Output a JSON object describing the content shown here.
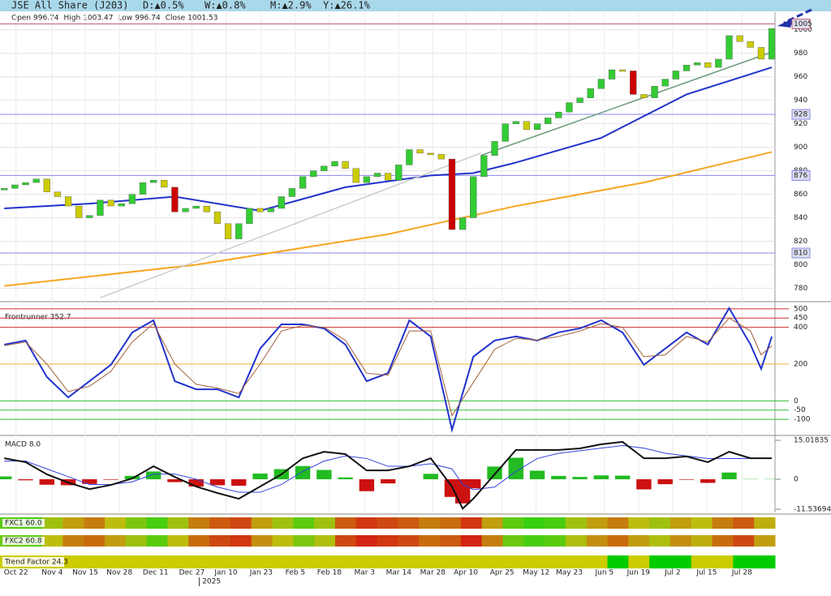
{
  "chart_data": {
    "type": "candlestick",
    "header": {
      "title": "JSE All Share (J203)",
      "changes": [
        "D:▲0.5%",
        "W:▲0.8%",
        "M:▲2.9%",
        "Y:▲26.1%"
      ]
    },
    "ohlc": [
      {
        "label": "Open",
        "value": 996.74
      },
      {
        "label": "High",
        "value": 1003.47
      },
      {
        "label": "Low",
        "value": 996.74
      },
      {
        "label": "Close",
        "value": 1001.53
      }
    ],
    "xlim": [
      -0.4,
      72.3
    ],
    "xticks": [
      {
        "value": 1.1,
        "label": "Oct 22"
      },
      {
        "value": 4.5,
        "label": "Nov 4"
      },
      {
        "value": 7.6,
        "label": "Nov 15"
      },
      {
        "value": 10.8,
        "label": "Nov 28"
      },
      {
        "value": 14.2,
        "label": "Dec 11"
      },
      {
        "value": 17.6,
        "label": "Dec 27"
      },
      {
        "value": 20.8,
        "label": "Jan 10"
      },
      {
        "value": 24.1,
        "label": "Jan 23"
      },
      {
        "value": 27.3,
        "label": "Feb 5"
      },
      {
        "value": 30.5,
        "label": "Feb 18"
      },
      {
        "value": 33.8,
        "label": "Mar 3"
      },
      {
        "value": 37,
        "label": "Mar 14"
      },
      {
        "value": 40.2,
        "label": "Mar 28"
      },
      {
        "value": 43.3,
        "label": "Apr 10"
      },
      {
        "value": 46.7,
        "label": "Apr 25"
      },
      {
        "value": 49.9,
        "label": "May 12"
      },
      {
        "value": 53,
        "label": "May 23"
      },
      {
        "value": 56.3,
        "label": "Jun 5"
      },
      {
        "value": 59.5,
        "label": "Jun 19"
      },
      {
        "value": 62.7,
        "label": "Jul 2"
      },
      {
        "value": 65.9,
        "label": "Jul 15"
      },
      {
        "value": 69.2,
        "label": "Jul 28"
      }
    ],
    "year_label": {
      "value": 18.3,
      "label": "2025"
    },
    "price": {
      "ylim": [
        770,
        1015
      ],
      "yticks": [
        780,
        800,
        820,
        840,
        860,
        880,
        900,
        920,
        940,
        960,
        980,
        1000
      ],
      "grid": true,
      "up_color": "#33cc33",
      "down_color": "#cccc00",
      "drop_color": "#cc0000",
      "closes": [
        865,
        868,
        870,
        873,
        862,
        858,
        850,
        840,
        842,
        855,
        850,
        852,
        860,
        870,
        872,
        866,
        845,
        848,
        850,
        845,
        835,
        822,
        835,
        848,
        845,
        848,
        858,
        865,
        875,
        880,
        884,
        888,
        882,
        870,
        875,
        878,
        872,
        885,
        898,
        895,
        894,
        890,
        830,
        840,
        875,
        893,
        905,
        920,
        922,
        915,
        920,
        925,
        930,
        938,
        942,
        950,
        958,
        966,
        965,
        945,
        942,
        952,
        958,
        965,
        970,
        972,
        968,
        975,
        995,
        990,
        985,
        975,
        1001
      ],
      "lines": [
        {
          "name": "MA50",
          "color": "#2233cc",
          "x": [
            0,
            8,
            16,
            24,
            32,
            40,
            44,
            48,
            56,
            64,
            72
          ],
          "values": [
            848,
            852,
            858,
            846,
            866,
            876,
            878,
            887,
            908,
            945,
            968
          ]
        },
        {
          "name": "MA200",
          "color": "#f5a623",
          "x": [
            0,
            18,
            36,
            48,
            60,
            72
          ],
          "values": [
            782,
            800,
            826,
            850,
            870,
            896
          ]
        },
        {
          "name": "Trend 1",
          "color": "#cccccc",
          "x": [
            9,
            44.7
          ],
          "values": [
            772,
            895
          ]
        },
        {
          "name": "Trend 2",
          "color": "#6a9a7a",
          "x": [
            44.7,
            72
          ],
          "values": [
            893,
            981
          ]
        }
      ],
      "levels": [
        {
          "value": 1005,
          "color": "#c0607a"
        },
        {
          "value": 928,
          "color": "#8888ee"
        },
        {
          "value": 876,
          "color": "#8888ee"
        },
        {
          "value": 810,
          "color": "#8888ee"
        }
      ]
    },
    "frontrunner": {
      "title": "Frontrunner 352.7",
      "ylim": [
        -179,
        526
      ],
      "yticks": [
        500,
        450,
        400,
        200,
        0,
        -50,
        -100
      ],
      "tick_colors": [
        "#cc3333",
        "#cc3333",
        "#cc3333",
        "#f0b030",
        "#33bb33",
        "#33bb33",
        "#33bb33"
      ],
      "series": [
        {
          "color": "#2233cc",
          "x": [
            0,
            2,
            4,
            6,
            8,
            10,
            12,
            14,
            16,
            18,
            20,
            22,
            24,
            26,
            28,
            30,
            32,
            34,
            36,
            38,
            40,
            42,
            44,
            46,
            48,
            50,
            52,
            54,
            56,
            58,
            60,
            62,
            64,
            66,
            68,
            70,
            71,
            72
          ],
          "values": [
            306,
            328,
            130,
            19,
            107,
            196,
            372,
            438,
            107,
            63,
            63,
            19,
            284,
            416,
            416,
            394,
            306,
            107,
            151,
            438,
            350,
            -157,
            240,
            328,
            350,
            328,
            372,
            394,
            438,
            372,
            196,
            284,
            372,
            306,
            504,
            306,
            174,
            350
          ]
        },
        {
          "color": "#a0603a",
          "x": [
            0,
            2,
            4,
            6,
            8,
            10,
            12,
            14,
            16,
            18,
            20,
            22,
            24,
            26,
            28,
            30,
            32,
            34,
            36,
            38,
            40,
            42,
            44,
            46,
            48,
            50,
            52,
            54,
            56,
            58,
            60,
            62,
            64,
            66,
            68,
            70,
            71,
            72
          ],
          "values": [
            300,
            320,
            200,
            50,
            80,
            160,
            320,
            420,
            200,
            90,
            70,
            40,
            200,
            380,
            410,
            400,
            330,
            150,
            140,
            380,
            380,
            -80,
            100,
            280,
            340,
            330,
            350,
            380,
            420,
            400,
            240,
            250,
            350,
            320,
            450,
            380,
            250,
            300
          ]
        }
      ]
    },
    "macd": {
      "title": "MACD 8.0",
      "ylim": [
        -12.8,
        15.95
      ],
      "yticks": [
        15.01835,
        0,
        -11.53694
      ],
      "x": [
        0,
        2,
        4,
        6,
        8,
        10,
        12,
        14,
        16,
        18,
        20,
        22,
        24,
        26,
        28,
        30,
        32,
        34,
        36,
        38,
        40,
        42,
        43,
        44,
        46,
        48,
        50,
        52,
        54,
        56,
        58,
        60,
        62,
        64,
        66,
        68,
        70,
        72
      ],
      "macd": {
        "color": "#111111",
        "values": [
          8.1,
          6.6,
          1.9,
          -1.3,
          -3.8,
          -2.2,
          0.3,
          5,
          0.9,
          -2.8,
          -5.3,
          -7.5,
          -2.8,
          1.9,
          8.1,
          10.6,
          9.7,
          3.4,
          3.4,
          5,
          8.1,
          -2.8,
          -11.3,
          -7.5,
          1.9,
          11.3,
          11.3,
          11.3,
          11.9,
          13.5,
          14.4,
          8.1,
          8.1,
          8.8,
          6.6,
          10.6,
          8.1,
          8.1
        ]
      },
      "signal": {
        "color": "#3344dd",
        "values": [
          7,
          7,
          4,
          1,
          -2,
          -2,
          -1,
          2,
          2,
          0,
          -3,
          -5,
          -5,
          -2,
          3,
          7,
          9,
          8,
          5,
          5,
          6,
          4,
          -2,
          -4,
          -3,
          3,
          8,
          10,
          11,
          12,
          13,
          12,
          10,
          9,
          8,
          8,
          8,
          8
        ]
      },
      "histogram": {
        "up_color": "#22bb22",
        "down_color": "#cc1111",
        "values": [
          1.1,
          -0.4,
          -2.1,
          -2.3,
          -1.8,
          -0.2,
          1.3,
          3,
          -1.1,
          -2.8,
          -2.3,
          -2.5,
          2.2,
          3.9,
          5.1,
          3.6,
          0.7,
          -4.6,
          -1.6,
          0,
          2.1,
          -6.8,
          -9.3,
          -3.5,
          4.9,
          8.3,
          3.3,
          1.3,
          0.9,
          1.5,
          1.4,
          -3.9,
          -1.9,
          -0.2,
          -1.4,
          2.6,
          0.1,
          0.1
        ]
      }
    },
    "strips": [
      {
        "title": "FXC1 60.0",
        "values": [
          80,
          85,
          60,
          40,
          30,
          50,
          70,
          85,
          60,
          30,
          20,
          15,
          40,
          60,
          80,
          60,
          20,
          10,
          15,
          20,
          30,
          25,
          10,
          40,
          80,
          90,
          85,
          60,
          40,
          30,
          50,
          60,
          40,
          50,
          30,
          20,
          45
        ]
      },
      {
        "title": "FXC2 60.8",
        "values": [
          75,
          80,
          50,
          30,
          25,
          40,
          60,
          80,
          50,
          25,
          15,
          10,
          35,
          50,
          70,
          55,
          15,
          5,
          10,
          15,
          25,
          20,
          5,
          30,
          75,
          85,
          80,
          55,
          35,
          25,
          40,
          55,
          35,
          45,
          25,
          15,
          40
        ]
      },
      {
        "title": "Trend Factor 24.3",
        "values": [
          30,
          30,
          30,
          30,
          30,
          30,
          30,
          30,
          30,
          30,
          30,
          30,
          30,
          30,
          30,
          30,
          30,
          30,
          30,
          30,
          30,
          30,
          30,
          30,
          30,
          30,
          30,
          30,
          30,
          80,
          30,
          80,
          80,
          30,
          30,
          80,
          80
        ]
      }
    ]
  }
}
